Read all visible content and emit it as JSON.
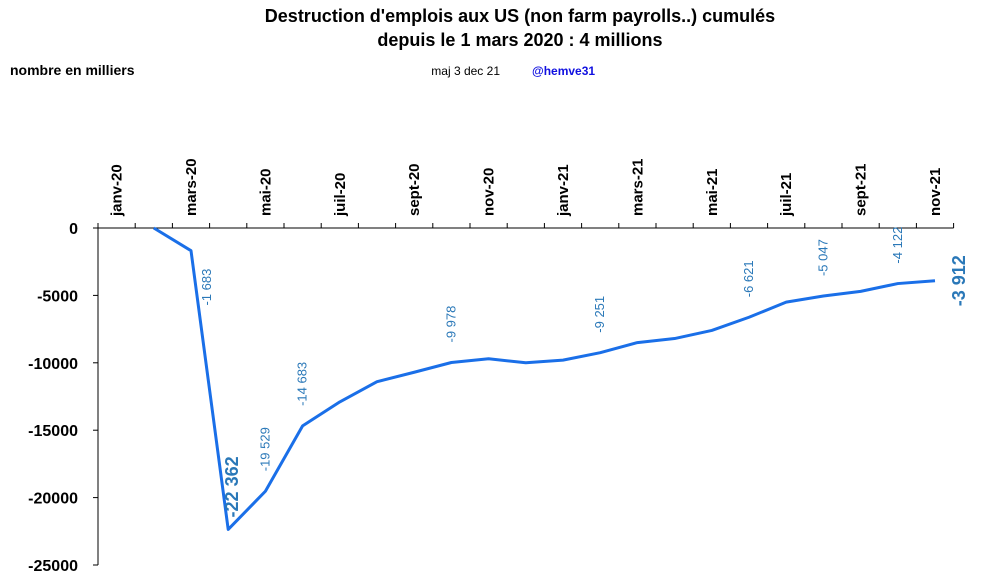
{
  "chart_data": {
    "type": "line",
    "title": [
      "Destruction d'emplois aux US (non farm payrolls..) cumulés",
      "depuis le 1  mars 2020 : 4 millions"
    ],
    "ylabel": "nombre en milliers",
    "subtitle": "maj 3 dec 21",
    "author": "@hemve31",
    "categories": [
      "janv-20",
      null,
      "mars-20",
      null,
      "mai-20",
      null,
      "juil-20",
      null,
      "sept-20",
      null,
      "nov-20",
      null,
      "janv-21",
      null,
      "mars-21",
      null,
      "mai-21",
      null,
      "juil-21",
      null,
      "sept-21",
      null,
      "nov-21"
    ],
    "series": [
      {
        "color": "#1a6fe8",
        "values": [
          null,
          0,
          -1683,
          -22362,
          -19529,
          -14683,
          -12900,
          -11400,
          -10700,
          -9978,
          -9700,
          -10000,
          -9800,
          -9251,
          -8500,
          -8200,
          -7600,
          -6621,
          -5500,
          -5047,
          -4700,
          -4122,
          -3912
        ],
        "value_labels": [
          null,
          null,
          "-1 683",
          "-22 362",
          "-19 529",
          "-14 683",
          null,
          null,
          null,
          "-9 978",
          null,
          null,
          null,
          "-9 251",
          null,
          null,
          null,
          "-6 621",
          null,
          "-5 047",
          null,
          "-4 122",
          "-3 912"
        ]
      }
    ],
    "ylim": [
      -25000,
      0
    ],
    "yticks": [
      0,
      -5000,
      -10000,
      -15000,
      -20000,
      -25000
    ]
  }
}
